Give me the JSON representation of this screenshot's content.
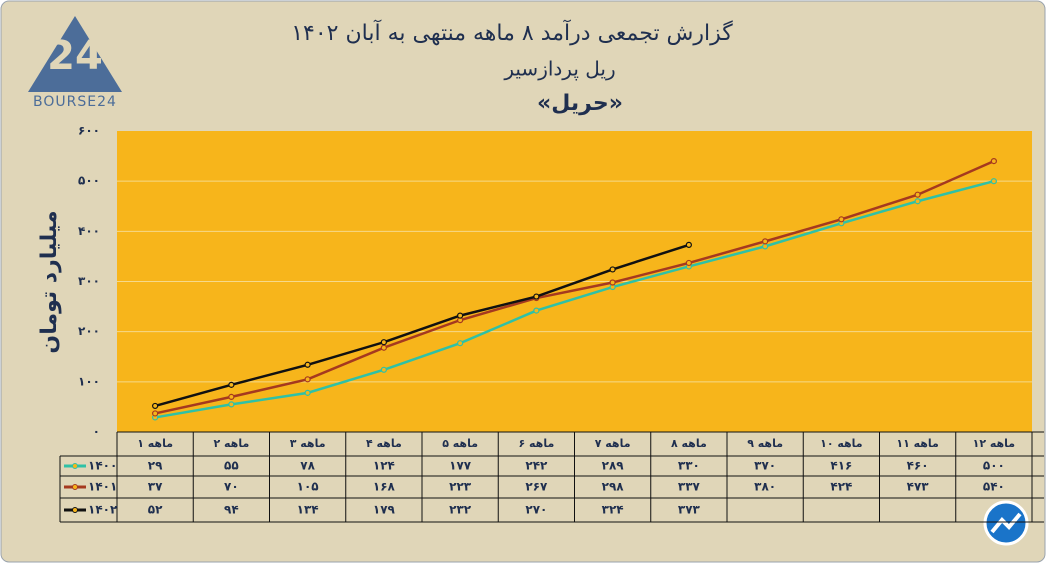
{
  "logo": {
    "mark": "24",
    "name": "BOURSE24"
  },
  "chart_data": {
    "type": "line",
    "title": "گزارش تجمعی درآمد ۸ ماهه منتهی به آبان ۱۴۰۲",
    "subtitle": "ریل پردازسیر",
    "subtitle2": "«حریل»",
    "y_label": "میلیارد تومان",
    "categories": [
      "۱ ماهه",
      "۲ ماهه",
      "۳ ماهه",
      "۴ ماهه",
      "۵ ماهه",
      "۶ ماهه",
      "۷ ماهه",
      "۸ ماهه",
      "۹ ماهه",
      "۱۰ ماهه",
      "۱۱ ماهه",
      "۱۲ ماهه"
    ],
    "ylim": [
      0,
      600
    ],
    "yticks": [
      {
        "value": 0,
        "label": "۰"
      },
      {
        "value": 100,
        "label": "۱۰۰"
      },
      {
        "value": 200,
        "label": "۲۰۰"
      },
      {
        "value": 300,
        "label": "۳۰۰"
      },
      {
        "value": 400,
        "label": "۴۰۰"
      },
      {
        "value": 500,
        "label": "۵۰۰"
      },
      {
        "value": 600,
        "label": "۶۰۰"
      }
    ],
    "grid": true,
    "series": [
      {
        "name": "۱۴۰۰",
        "color": "#2fc1a6",
        "values": [
          29,
          55,
          78,
          124,
          177,
          242,
          289,
          330,
          370,
          416,
          460,
          500
        ],
        "value_labels": [
          "۲۹",
          "۵۵",
          "۷۸",
          "۱۲۴",
          "۱۷۷",
          "۲۴۲",
          "۲۸۹",
          "۳۳۰",
          "۳۷۰",
          "۴۱۶",
          "۴۶۰",
          "۵۰۰"
        ]
      },
      {
        "name": "۱۴۰۱",
        "color": "#a5391f",
        "values": [
          37,
          70,
          105,
          168,
          223,
          267,
          298,
          337,
          380,
          424,
          473,
          540
        ],
        "value_labels": [
          "۳۷",
          "۷۰",
          "۱۰۵",
          "۱۶۸",
          "۲۲۳",
          "۲۶۷",
          "۲۹۸",
          "۳۳۷",
          "۳۸۰",
          "۴۲۴",
          "۴۷۳",
          "۵۴۰"
        ]
      },
      {
        "name": "۱۴۰۲",
        "color": "#111111",
        "values": [
          52,
          94,
          134,
          179,
          232,
          270,
          324,
          373,
          null,
          null,
          null,
          null
        ],
        "value_labels": [
          "۵۲",
          "۹۴",
          "۱۳۴",
          "۱۷۹",
          "۲۳۲",
          "۲۷۰",
          "۳۲۴",
          "۳۷۳",
          null,
          null,
          null,
          null
        ]
      }
    ]
  }
}
